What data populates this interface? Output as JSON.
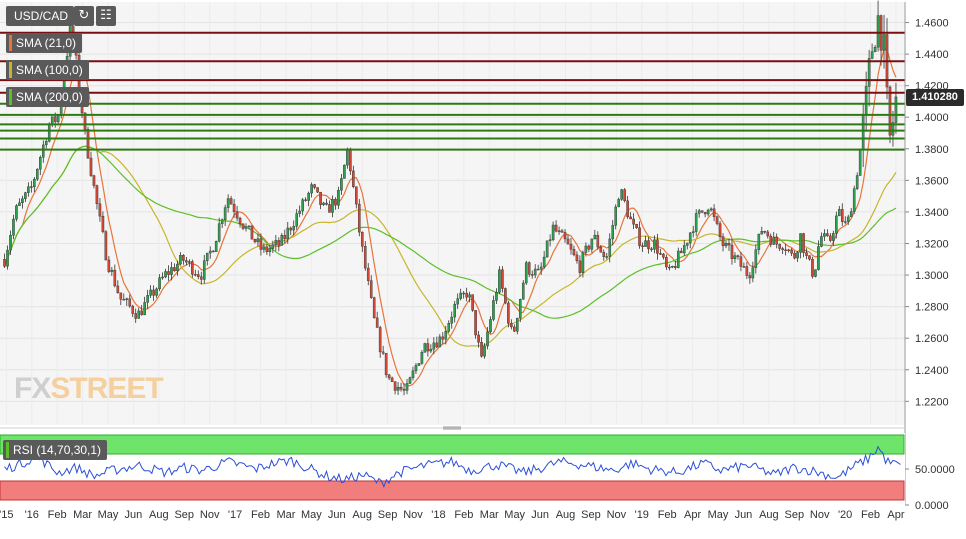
{
  "header": {
    "symbol": "USD/CAD",
    "refresh_icon": "refresh-icon",
    "calendar_icon": "calendar-icon",
    "indicators": [
      {
        "label": "SMA (21,0)",
        "color": "#e8743b"
      },
      {
        "label": "SMA (100,0)",
        "color": "#c9b52a"
      },
      {
        "label": "SMA (200,0)",
        "color": "#5cbf2a"
      }
    ]
  },
  "price_badge": "1.410280",
  "logo": {
    "part1": "FX",
    "part2": "STREET"
  },
  "rsi_panel": {
    "label": "RSI (14,70,30,1)",
    "level_top": "50.0000",
    "level_bottom": "0.0000"
  },
  "chart_data": [
    {
      "type": "candlestick",
      "title": "USD/CAD",
      "x_tick_labels": [
        "'15",
        "'16",
        "Feb",
        "Mar",
        "May",
        "Jun",
        "Aug",
        "Sep",
        "Nov",
        "'17",
        "Feb",
        "Mar",
        "May",
        "Jun",
        "Aug",
        "Sep",
        "Nov",
        "'18",
        "Feb",
        "Mar",
        "May",
        "Jun",
        "Aug",
        "Sep",
        "Nov",
        "'19",
        "Feb",
        "Apr",
        "May",
        "Jun",
        "Aug",
        "Sep",
        "Nov",
        "'20",
        "Feb",
        "Apr"
      ],
      "y_tick_labels": [
        "1.4600",
        "1.4400",
        "1.4200",
        "1.4000",
        "1.3800",
        "1.3600",
        "1.3400",
        "1.3200",
        "1.3000",
        "1.2800",
        "1.2600",
        "1.2400",
        "1.2200"
      ],
      "ylim": [
        1.205,
        1.473
      ],
      "last_price": 1.41028,
      "horizontal_levels": {
        "resistance_red": [
          1.4535,
          1.4355,
          1.4235,
          1.4155
        ],
        "support_green": [
          1.4085,
          1.4015,
          1.3955,
          1.3915,
          1.3865,
          1.3795
        ]
      },
      "price_anchors": {
        "t": [
          0,
          0.012,
          0.03,
          0.05,
          0.06,
          0.075,
          0.09,
          0.105,
          0.115,
          0.13,
          0.15,
          0.18,
          0.2,
          0.22,
          0.235,
          0.25,
          0.27,
          0.29,
          0.31,
          0.33,
          0.345,
          0.36,
          0.375,
          0.385,
          0.4,
          0.415,
          0.43,
          0.45,
          0.47,
          0.49,
          0.505,
          0.52,
          0.535,
          0.555,
          0.57,
          0.585,
          0.6,
          0.615,
          0.63,
          0.645,
          0.66,
          0.675,
          0.69,
          0.705,
          0.715,
          0.73,
          0.745,
          0.76,
          0.775,
          0.79,
          0.805,
          0.82,
          0.835,
          0.85,
          0.865,
          0.875,
          0.885,
          0.893,
          0.9,
          0.908,
          0.915,
          0.925,
          0.935,
          0.945,
          0.955,
          0.965,
          0.975,
          0.982,
          0.988,
          0.992,
          1.0
        ],
        "price": [
          1.31,
          1.34,
          1.355,
          1.395,
          1.4,
          1.46,
          1.39,
          1.34,
          1.31,
          1.285,
          1.275,
          1.3,
          1.31,
          1.3,
          1.32,
          1.35,
          1.33,
          1.315,
          1.32,
          1.34,
          1.355,
          1.34,
          1.35,
          1.38,
          1.32,
          1.27,
          1.235,
          1.225,
          1.255,
          1.26,
          1.28,
          1.29,
          1.245,
          1.3,
          1.26,
          1.305,
          1.3,
          1.33,
          1.32,
          1.305,
          1.325,
          1.31,
          1.355,
          1.33,
          1.32,
          1.32,
          1.3,
          1.315,
          1.335,
          1.345,
          1.32,
          1.31,
          1.3,
          1.33,
          1.32,
          1.32,
          1.31,
          1.325,
          1.31,
          1.3,
          1.325,
          1.32,
          1.34,
          1.33,
          1.36,
          1.4,
          1.455,
          1.465,
          1.43,
          1.38,
          1.41
        ]
      }
    },
    {
      "type": "line",
      "title": "RSI (14,70,30,1)",
      "y_tick_labels": [
        "50.0000",
        "0.0000"
      ],
      "ylim": [
        0,
        100
      ],
      "zones": {
        "overbought_from": 70,
        "oversold_below": 30
      },
      "rsi_anchors": {
        "t": [
          0,
          0.02,
          0.035,
          0.06,
          0.08,
          0.1,
          0.12,
          0.15,
          0.18,
          0.2,
          0.22,
          0.25,
          0.28,
          0.3,
          0.32,
          0.345,
          0.36,
          0.38,
          0.4,
          0.42,
          0.44,
          0.47,
          0.5,
          0.52,
          0.55,
          0.58,
          0.6,
          0.62,
          0.65,
          0.68,
          0.7,
          0.72,
          0.75,
          0.78,
          0.8,
          0.83,
          0.86,
          0.88,
          0.9,
          0.93,
          0.95,
          0.965,
          0.975,
          0.985,
          1.0
        ],
        "rsi": [
          50,
          58,
          68,
          45,
          52,
          40,
          48,
          55,
          45,
          52,
          48,
          60,
          50,
          58,
          62,
          48,
          40,
          35,
          42,
          30,
          45,
          55,
          60,
          48,
          56,
          45,
          52,
          60,
          55,
          48,
          58,
          50,
          45,
          58,
          48,
          55,
          42,
          52,
          48,
          38,
          55,
          65,
          80,
          60,
          55
        ]
      }
    }
  ]
}
